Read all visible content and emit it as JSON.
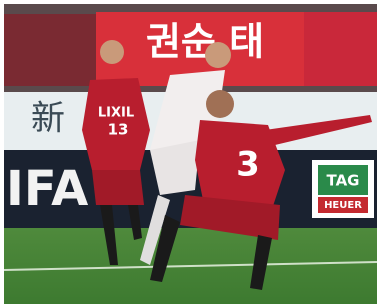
{
  "banner": {
    "text": "권순 태"
  },
  "board": {
    "text": "新"
  },
  "ad_left": {
    "text": "IFA"
  },
  "ad_right": {
    "line1": "TAG",
    "line2": "HEUER"
  },
  "players": [
    {
      "sponsor": "LIXIL",
      "number": "13"
    },
    {
      "number": "3"
    }
  ]
}
